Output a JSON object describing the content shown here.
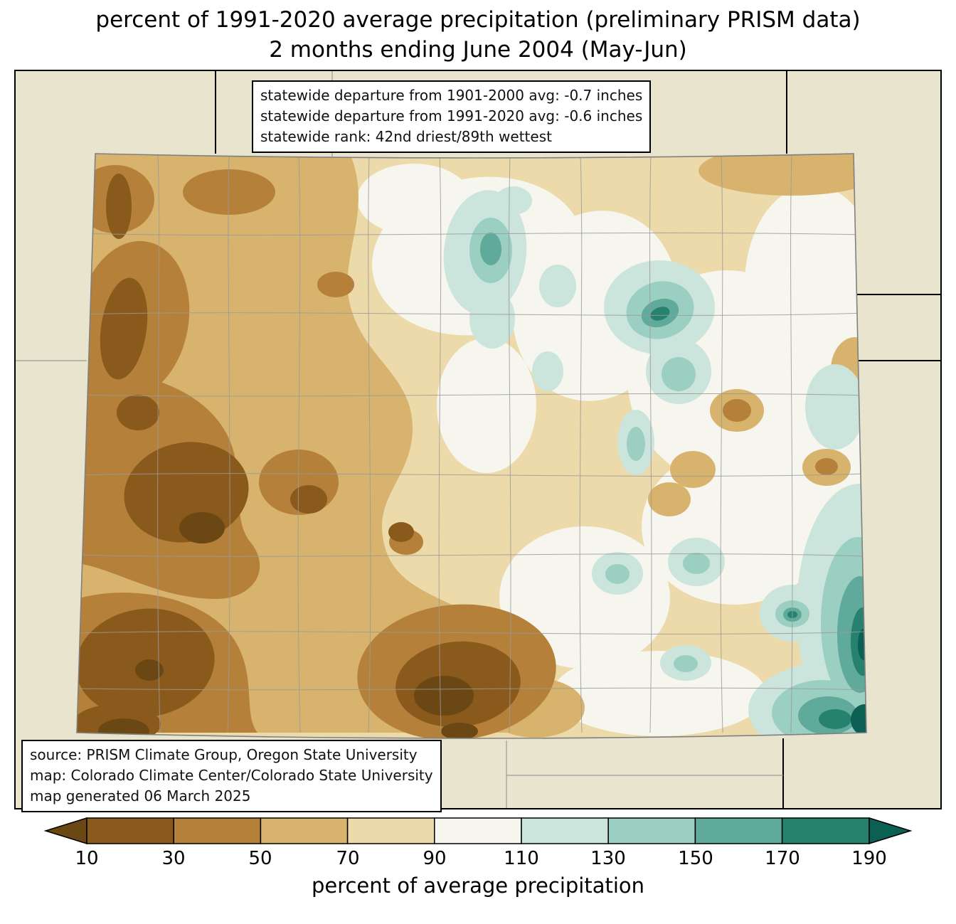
{
  "title": {
    "line1": "percent of 1991-2020 average precipitation (preliminary PRISM data)",
    "line2": "2 months ending June 2004 (May-Jun)"
  },
  "stats_box": {
    "lines": [
      "statewide departure from 1901-2000 avg: -0.7 inches",
      "statewide departure from 1991-2020 avg: -0.6 inches",
      "statewide rank: 42nd driest/89th wettest"
    ]
  },
  "source_box": {
    "lines": [
      "source: PRISM Climate Group, Oregon State University",
      "map: Colorado Climate Center/Colorado State University",
      "map generated 06 March 2025"
    ]
  },
  "colorbar": {
    "axis_label": "percent of average precipitation",
    "ticks": [
      "10",
      "30",
      "50",
      "70",
      "90",
      "110",
      "130",
      "150",
      "170",
      "190"
    ],
    "colors": [
      "#6b4714",
      "#8a5a1d",
      "#b5813a",
      "#d8b36d",
      "#ecdaab",
      "#f6f5ee",
      "#cbe4dc",
      "#9bcfc2",
      "#5faa9b",
      "#26816f",
      "#0b5f53"
    ]
  },
  "map": {
    "region": "Colorado",
    "background_color": "#e9e4cd",
    "boundary_color": "#808080"
  },
  "chart_data": {
    "type": "heatmap",
    "region": "Colorado",
    "variable": "percent of average precipitation",
    "period": "2 months ending June 2004 (May-Jun)",
    "baseline": "1991-2020",
    "scale_ticks": [
      10,
      30,
      50,
      70,
      90,
      110,
      130,
      150,
      170,
      190
    ],
    "statewide_departure_from_1901_2000_avg_inches": -0.7,
    "statewide_departure_from_1991_2020_avg_inches": -0.6,
    "statewide_rank": "42nd driest/89th wettest"
  }
}
